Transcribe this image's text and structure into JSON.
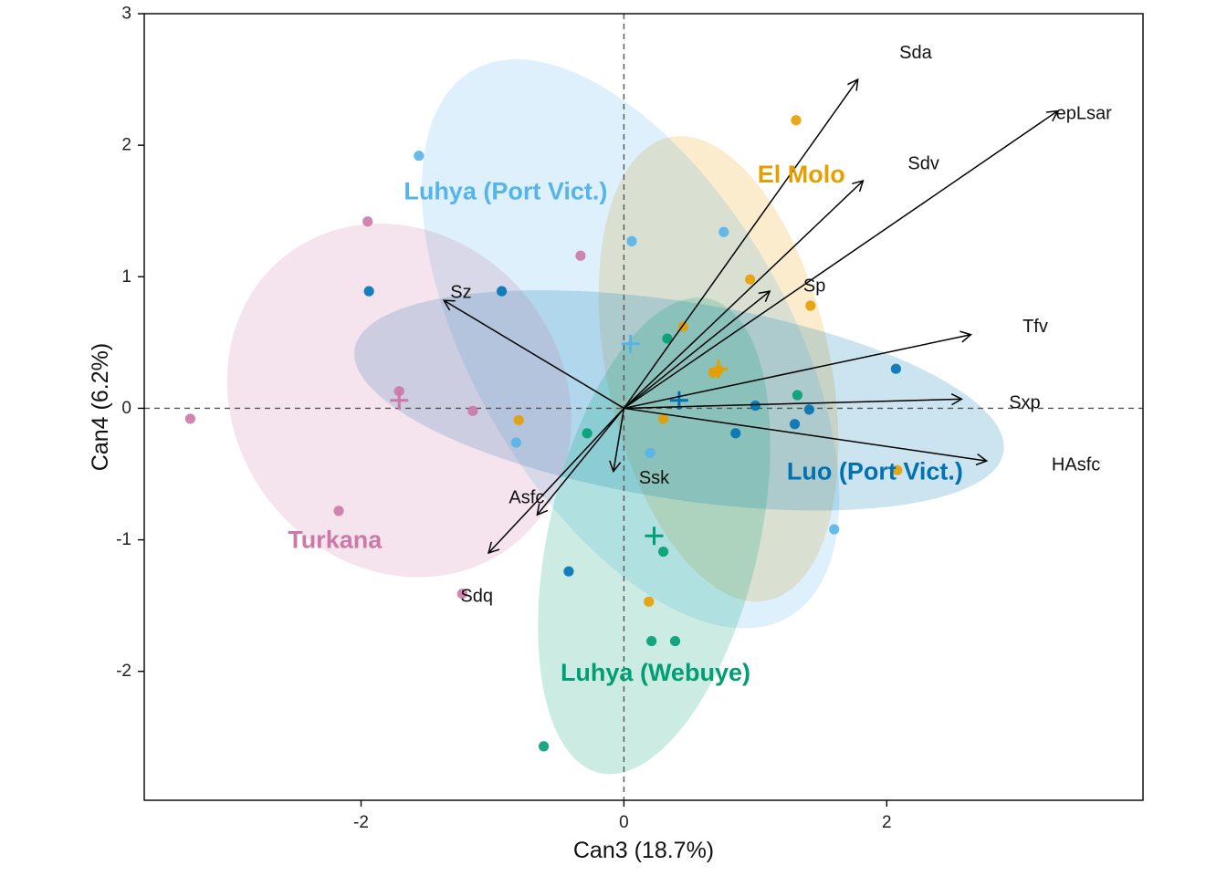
{
  "chart_data": {
    "type": "scatter",
    "xlabel": "Can3 (18.7%)",
    "ylabel": "Can4 (6.2%)",
    "xlim": [
      -3.65,
      3.95
    ],
    "ylim": [
      -2.98,
      3.0
    ],
    "xticks": [
      -2,
      0,
      2
    ],
    "yticks": [
      -2,
      -1,
      0,
      1,
      2,
      3
    ],
    "reference_lines": {
      "x": 0,
      "y": 0,
      "style": "dashed"
    },
    "groups": [
      {
        "name": "El Molo",
        "color": "#E69F00",
        "centroid": [
          0.72,
          0.3
        ],
        "ellipse": {
          "center": [
            0.72,
            0.3
          ],
          "rx": 0.85,
          "ry": 1.8,
          "rotation_deg": -12
        },
        "label_pos": [
          1.35,
          1.78
        ],
        "points": [
          [
            1.31,
            2.19
          ],
          [
            0.96,
            0.98
          ],
          [
            1.42,
            0.78
          ],
          [
            0.45,
            0.62
          ],
          [
            0.68,
            0.27
          ],
          [
            0.72,
            0.29
          ],
          [
            -0.8,
            -0.09
          ],
          [
            0.3,
            -0.08
          ],
          [
            2.08,
            -0.47
          ],
          [
            0.19,
            -1.47
          ]
        ]
      },
      {
        "name": "Luhya (Port Vict.)",
        "color": "#56B4E9",
        "centroid": [
          0.05,
          0.49
        ],
        "ellipse": {
          "center": [
            0.05,
            0.49
          ],
          "rx": 1.2,
          "ry": 2.4,
          "rotation_deg": -30
        },
        "label_pos": [
          -0.9,
          1.65
        ],
        "points": [
          [
            -1.56,
            1.92
          ],
          [
            0.06,
            1.27
          ],
          [
            0.76,
            1.34
          ],
          [
            -0.82,
            -0.26
          ],
          [
            0.2,
            -0.34
          ],
          [
            1.6,
            -0.92
          ]
        ]
      },
      {
        "name": "Luo (Port Vict.)",
        "color": "#0072B2",
        "centroid": [
          0.42,
          0.06
        ],
        "ellipse": {
          "center": [
            0.42,
            0.06
          ],
          "rx": 2.5,
          "ry": 0.75,
          "rotation_deg": 9
        },
        "label_pos": [
          1.91,
          -0.48
        ],
        "points": [
          [
            -1.94,
            0.89
          ],
          [
            -0.93,
            0.89
          ],
          [
            2.07,
            0.3
          ],
          [
            1.0,
            0.02
          ],
          [
            1.41,
            -0.01
          ],
          [
            1.3,
            -0.12
          ],
          [
            0.85,
            -0.19
          ],
          [
            -0.42,
            -1.24
          ]
        ]
      },
      {
        "name": "Turkana",
        "color": "#CC79A7",
        "centroid": [
          -1.71,
          0.06
        ],
        "ellipse": {
          "center": [
            -1.71,
            0.06
          ],
          "rx": 1.25,
          "ry": 1.4,
          "rotation_deg": -38
        },
        "label_pos": [
          -2.2,
          -1.0
        ],
        "points": [
          [
            -1.95,
            1.42
          ],
          [
            -0.33,
            1.16
          ],
          [
            -1.71,
            0.13
          ],
          [
            -1.15,
            -0.02
          ],
          [
            -3.3,
            -0.08
          ],
          [
            -2.17,
            -0.78
          ],
          [
            -1.23,
            -1.41
          ]
        ]
      },
      {
        "name": "Luhya (Webuye)",
        "color": "#009E73",
        "centroid": [
          0.23,
          -0.97
        ],
        "ellipse": {
          "center": [
            0.23,
            -0.97
          ],
          "rx": 0.8,
          "ry": 1.85,
          "rotation_deg": 13
        },
        "label_pos": [
          0.24,
          -2.01
        ],
        "points": [
          [
            0.33,
            0.53
          ],
          [
            1.32,
            0.1
          ],
          [
            -0.28,
            -0.19
          ],
          [
            0.3,
            -1.09
          ],
          [
            0.21,
            -1.77
          ],
          [
            0.39,
            -1.77
          ],
          [
            -0.61,
            -2.57
          ]
        ]
      }
    ],
    "variables": [
      {
        "name": "Sda",
        "end": [
          1.78,
          2.5
        ],
        "label_pos": [
          2.22,
          2.7
        ]
      },
      {
        "name": "epLsar",
        "end": [
          3.3,
          2.26
        ],
        "label_pos": [
          3.5,
          2.24
        ]
      },
      {
        "name": "Sdv",
        "end": [
          1.82,
          1.73
        ],
        "label_pos": [
          2.28,
          1.86
        ]
      },
      {
        "name": "Sp",
        "end": [
          1.11,
          0.89
        ],
        "label_pos": [
          1.45,
          0.93
        ]
      },
      {
        "name": "Tfv",
        "end": [
          2.64,
          0.56
        ],
        "label_pos": [
          3.13,
          0.62
        ]
      },
      {
        "name": "Sxp",
        "end": [
          2.57,
          0.07
        ],
        "label_pos": [
          3.05,
          0.04
        ]
      },
      {
        "name": "HAsfc",
        "end": [
          2.76,
          -0.4
        ],
        "label_pos": [
          3.44,
          -0.43
        ]
      },
      {
        "name": "Sz",
        "end": [
          -1.37,
          0.82
        ],
        "label_pos": [
          -1.24,
          0.88
        ]
      },
      {
        "name": "Ssk",
        "end": [
          -0.08,
          -0.48
        ],
        "label_pos": [
          0.23,
          -0.53
        ]
      },
      {
        "name": "Asfc",
        "end": [
          -0.66,
          -0.81
        ],
        "label_pos": [
          -0.74,
          -0.68
        ]
      },
      {
        "name": "Sdq",
        "end": [
          -1.03,
          -1.1
        ],
        "label_pos": [
          -1.12,
          -1.43
        ]
      }
    ]
  }
}
